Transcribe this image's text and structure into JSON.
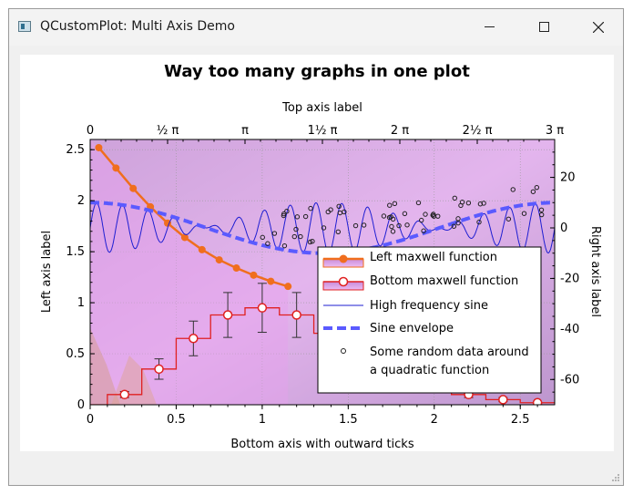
{
  "window": {
    "title": "QCustomPlot: Multi Axis Demo"
  },
  "chart_data": {
    "type": "line",
    "title": "Way too many graphs in one plot",
    "xlabel": "Bottom axis with outward ticks",
    "ylabel": "Left axis label",
    "x2label": "Top axis label",
    "y2label": "Right axis label",
    "xlim": [
      0,
      2.7
    ],
    "ylim": [
      0,
      2.6
    ],
    "y2lim": [
      -70,
      35
    ],
    "x_ticks": [
      "0",
      "0.5",
      "1",
      "1.5",
      "2",
      "2.5"
    ],
    "y_ticks": [
      "0",
      "0.5",
      "1",
      "1.5",
      "2",
      "2.5"
    ],
    "y2_ticks": [
      "20",
      "0",
      "-20",
      "-40",
      "-60"
    ],
    "x2_ticks": [
      "0",
      "½ π",
      "π",
      "1½ π",
      "2 π",
      "2½ π",
      "3 π"
    ],
    "legend_position": "bottom-right",
    "legend": [
      "Left maxwell function",
      "Bottom maxwell function",
      "High frequency sine",
      "Sine envelope",
      "Some random data around",
      "a quadratic function"
    ],
    "colors": {
      "maxwell_left": "#f06e1e",
      "maxwell_bottom": "#e02020",
      "high_freq_sine": "#1e1ed2",
      "envelope": "#5a5aff",
      "scatter": "#202020",
      "background_tint": "#c87adc"
    },
    "series": [
      {
        "name": "Left maxwell function",
        "x": [
          0.05,
          0.15,
          0.25,
          0.35,
          0.45,
          0.55,
          0.65,
          0.75,
          0.85,
          0.95,
          1.05,
          1.15
        ],
        "y": [
          2.52,
          2.32,
          2.12,
          1.94,
          1.78,
          1.64,
          1.52,
          1.42,
          1.34,
          1.27,
          1.21,
          1.16
        ]
      },
      {
        "name": "Bottom maxwell function",
        "x": [
          0.0,
          0.2,
          0.4,
          0.6,
          0.8,
          1.0,
          1.2,
          1.4,
          1.6,
          1.8,
          2.0,
          2.2,
          2.4,
          2.6
        ],
        "y": [
          0.0,
          0.1,
          0.35,
          0.65,
          0.88,
          0.95,
          0.88,
          0.7,
          0.5,
          0.33,
          0.2,
          0.1,
          0.05,
          0.02
        ],
        "yerr": [
          0.03,
          0.03,
          0.1,
          0.17,
          0.22,
          0.24,
          0.22,
          0.18,
          0.13,
          0.09,
          0.06,
          0.03,
          0.02,
          0.01
        ]
      },
      {
        "name": "High frequency sine",
        "x2_range_pi": [
          0,
          3
        ],
        "cycles": 18,
        "amplitude_y2": 10
      },
      {
        "name": "Sine envelope",
        "x2_range_pi": [
          0,
          3
        ],
        "amplitude_y2": 10
      },
      {
        "name": "Some random data around a quadratic function",
        "x2_range_pi": [
          1.1,
          3.0
        ],
        "points": 60
      }
    ]
  }
}
